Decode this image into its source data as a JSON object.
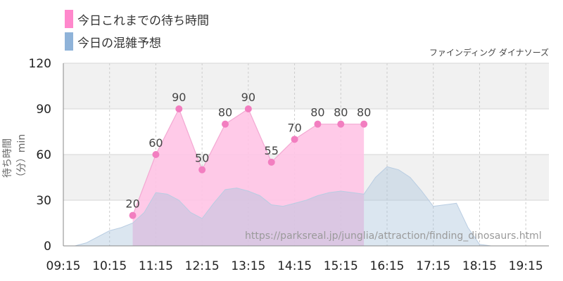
{
  "chart_data": {
    "type": "area",
    "subtitle": "ファインディング ダイナソーズ",
    "watermark": "https://parksreal.jp/junglia/attraction/finding_dinosaurs.html",
    "ylabel": "待ち時間（分）min",
    "ylim": [
      0,
      120
    ],
    "yticks": [
      "0",
      "30",
      "60",
      "90",
      "120"
    ],
    "xlim": [
      "09:15",
      "19:45"
    ],
    "xticks": [
      "09:15",
      "10:15",
      "11:15",
      "12:15",
      "13:15",
      "14:15",
      "15:15",
      "16:15",
      "17:15",
      "18:15",
      "19:15"
    ],
    "grid": true,
    "legend_position": "top-left",
    "series": [
      {
        "name": "今日これまでの待ち時間",
        "color": "#ff88cc",
        "x": [
          "10:45",
          "11:15",
          "11:45",
          "12:15",
          "12:45",
          "13:15",
          "13:45",
          "14:15",
          "14:45",
          "15:15",
          "15:45"
        ],
        "values": [
          20,
          60,
          90,
          50,
          80,
          90,
          55,
          70,
          80,
          80,
          80
        ],
        "labels": [
          "20",
          "60",
          "90",
          "50",
          "80",
          "90",
          "55",
          "70",
          "80",
          "80",
          "80"
        ]
      },
      {
        "name": "今日の混雑予想",
        "color": "#8fb3d9",
        "x": [
          "09:15",
          "09:30",
          "09:45",
          "10:00",
          "10:15",
          "10:30",
          "10:45",
          "11:00",
          "11:15",
          "11:30",
          "11:45",
          "12:00",
          "12:15",
          "12:30",
          "12:45",
          "13:00",
          "13:15",
          "13:30",
          "13:45",
          "14:00",
          "14:15",
          "14:30",
          "14:45",
          "15:00",
          "15:15",
          "15:30",
          "15:45",
          "16:00",
          "16:15",
          "16:30",
          "16:45",
          "17:00",
          "17:15",
          "17:30",
          "17:45",
          "18:00",
          "18:15",
          "18:30",
          "19:00",
          "19:45"
        ],
        "values": [
          0,
          0,
          2,
          6,
          10,
          12,
          15,
          22,
          35,
          34,
          30,
          22,
          18,
          28,
          37,
          38,
          36,
          33,
          27,
          26,
          28,
          30,
          33,
          35,
          36,
          35,
          34,
          45,
          52,
          50,
          45,
          36,
          26,
          27,
          28,
          12,
          1,
          0,
          0,
          0
        ]
      }
    ]
  }
}
